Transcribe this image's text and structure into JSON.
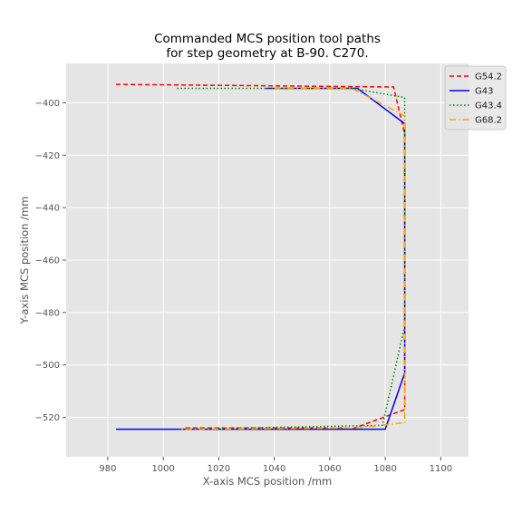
{
  "chart_data": {
    "type": "line",
    "title_lines": [
      "Commanded MCS position tool paths",
      "for step geometry at B-90. C270."
    ],
    "xlabel": "X-axis MCS position /mm",
    "ylabel": "Y-axis MCS position /mm",
    "xlim": [
      965,
      1110
    ],
    "ylim": [
      -535,
      -385
    ],
    "xticks": [
      980,
      1000,
      1020,
      1040,
      1060,
      1080,
      1100
    ],
    "yticks": [
      -400,
      -420,
      -440,
      -460,
      -480,
      -500,
      -520
    ],
    "grid": true,
    "legend_position": "top-right",
    "series": [
      {
        "name": "G54.2",
        "color": "#ff0000",
        "dash": "5,3",
        "points": [
          [
            983,
            -393
          ],
          [
            1083,
            -394
          ],
          [
            1087,
            -412
          ],
          [
            1087,
            -517
          ],
          [
            1069,
            -524
          ],
          [
            1008,
            -524
          ]
        ]
      },
      {
        "name": "G43",
        "color": "#0000ff",
        "dash": "",
        "points": [
          [
            1037,
            -394.5
          ],
          [
            1070,
            -394.5
          ],
          [
            1087,
            -408
          ],
          [
            1087,
            -503
          ],
          [
            1080,
            -524.5
          ],
          [
            983,
            -524.5
          ]
        ]
      },
      {
        "name": "G43.4",
        "color": "#008000",
        "dash": "1.5,2.5",
        "points": [
          [
            1005,
            -394.5
          ],
          [
            1068,
            -394.5
          ],
          [
            1087,
            -398
          ],
          [
            1087,
            -485
          ],
          [
            1079,
            -523
          ],
          [
            1005,
            -524.5
          ]
        ]
      },
      {
        "name": "G68.2",
        "color": "#ffa500",
        "dash": "7,3,1.5,3",
        "points": [
          [
            1040,
            -394.5
          ],
          [
            1068,
            -394.5
          ],
          [
            1087,
            -405
          ],
          [
            1087,
            -522
          ],
          [
            1070,
            -524
          ],
          [
            1006,
            -524.5
          ]
        ]
      }
    ]
  }
}
